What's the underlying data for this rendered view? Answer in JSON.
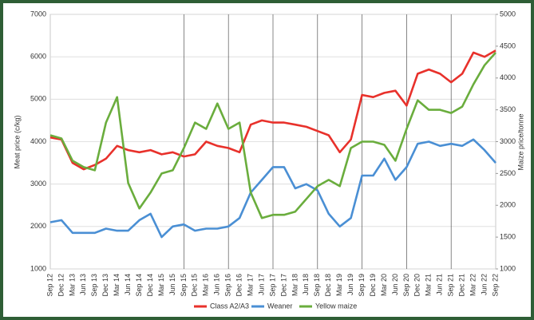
{
  "chart_data": {
    "type": "line",
    "y_label": "Meat price (c/kg)",
    "y2_label": "Maize price/tonne",
    "categories": [
      "Sep 12",
      "Dec 12",
      "Mar 13",
      "Jun 13",
      "Sep 13",
      "Dec 13",
      "Mar 14",
      "Jun 14",
      "Sep 14",
      "Dec 14",
      "Mar 15",
      "Jun 15",
      "Sep 15",
      "Dec 15",
      "Mar 16",
      "Jun 16",
      "Sep 16",
      "Dec 16",
      "Mar 17",
      "Jun 17",
      "Sep 17",
      "Dec 17",
      "Mar 18",
      "Jun 18",
      "Sep 18",
      "Dec 18",
      "Mar 19",
      "Jun 19",
      "Sep 19",
      "Dec 19",
      "Mar 20",
      "Jun 20",
      "Sep 20",
      "Dec 20",
      "Mar 21",
      "Jun 21",
      "Sep 21",
      "Dec 21",
      "Mar 22",
      "Jun 22",
      "Sep 22"
    ],
    "series": [
      {
        "name": "Class A2/A3",
        "color": "#e8312b",
        "values": [
          4100,
          4050,
          3500,
          3350,
          3450,
          3600,
          3900,
          3800,
          3750,
          3800,
          3700,
          3750,
          3650,
          3700,
          4000,
          3900,
          3850,
          3750,
          4400,
          4500,
          4450,
          4450,
          4400,
          4350,
          4250,
          4150,
          3750,
          4050,
          5100,
          5050,
          5150,
          5200,
          4850,
          5600,
          5700,
          5600,
          5400,
          5600,
          6100,
          6000,
          6150
        ]
      },
      {
        "name": "Weaner",
        "color": "#4a8fd4",
        "values": [
          2100,
          2150,
          1850,
          1850,
          1850,
          1950,
          1900,
          1900,
          2150,
          2300,
          1750,
          2000,
          2050,
          1900,
          1950,
          1950,
          2000,
          2200,
          2800,
          3100,
          3400,
          3400,
          2900,
          3000,
          2850,
          2300,
          2000,
          2200,
          3200,
          3200,
          3600,
          3100,
          3400,
          3950,
          4000,
          3900,
          3950,
          3900,
          4050,
          3800,
          3500
        ]
      },
      {
        "name": "Yellow maize",
        "color": "#6aad3d",
        "axis": "y2",
        "values": [
          3100,
          3050,
          2700,
          2600,
          2550,
          3300,
          3700,
          2350,
          1950,
          2200,
          2500,
          2550,
          2900,
          3300,
          3200,
          3600,
          3200,
          3300,
          2200,
          1800,
          1850,
          1850,
          1900,
          2100,
          2300,
          2400,
          2300,
          2900,
          3000,
          3000,
          2950,
          2700,
          3200,
          3650,
          3500,
          3500,
          3450,
          3550,
          3900,
          4200,
          4400
        ]
      }
    ],
    "ylim": [
      1000,
      7000
    ],
    "yticks": [
      1000,
      2000,
      3000,
      4000,
      5000,
      6000,
      7000
    ],
    "y2lim": [
      1000,
      5000
    ],
    "y2ticks": [
      1000,
      1500,
      2000,
      2500,
      3000,
      3500,
      4000,
      4500,
      5000
    ],
    "grid": true,
    "legend": "bottom"
  }
}
